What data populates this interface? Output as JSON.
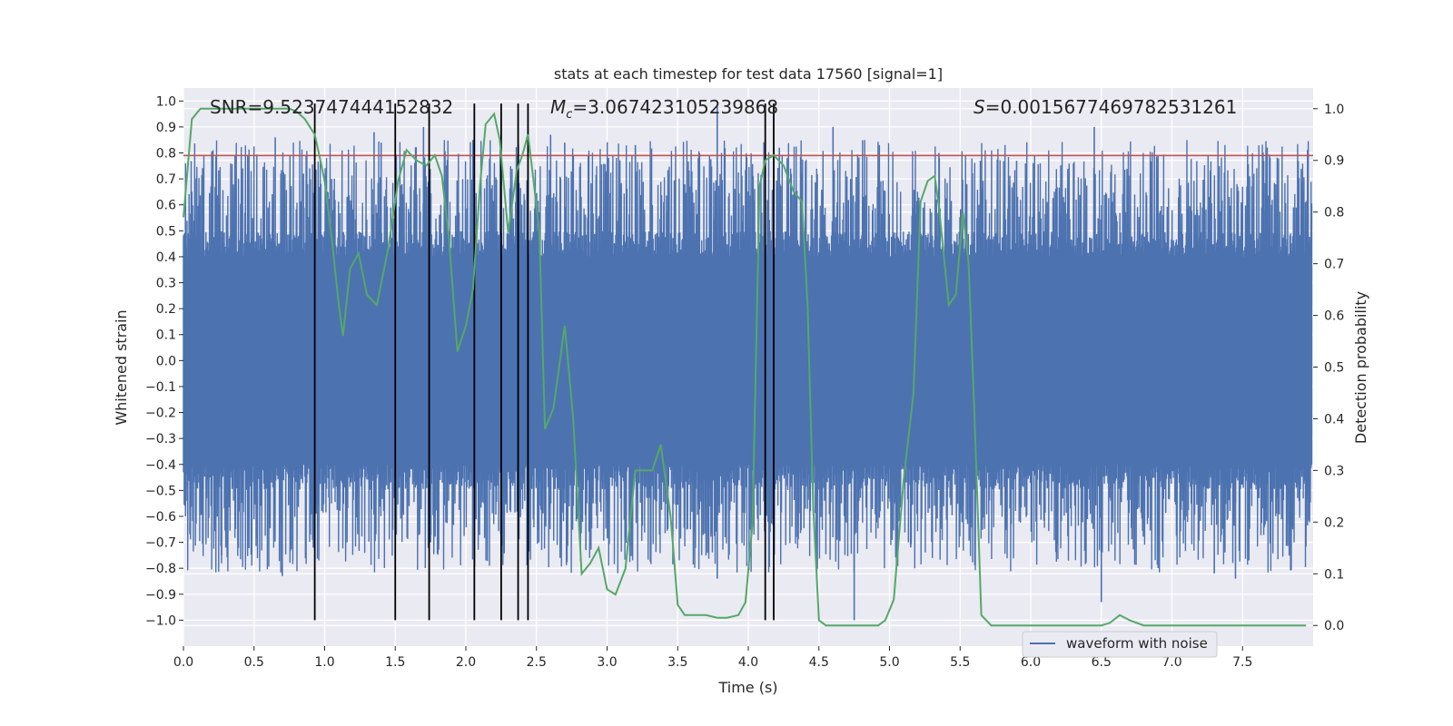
{
  "chart_data": {
    "type": "line",
    "title": "stats at each timestep for test data 17560 [signal=1]",
    "xlabel": "Time (s)",
    "ylabel": "Whitened strain",
    "y2label": "Detection probability",
    "xlim": [
      0.0,
      8.0
    ],
    "ylim": [
      -1.1,
      1.05
    ],
    "y2lim": [
      -0.04,
      1.04
    ],
    "grid": true,
    "x_ticks": [
      0.0,
      0.5,
      1.0,
      1.5,
      2.0,
      2.5,
      3.0,
      3.5,
      4.0,
      4.5,
      5.0,
      5.5,
      6.0,
      6.5,
      7.0,
      7.5
    ],
    "x_tick_labels": [
      "0.0",
      "0.5",
      "1.0",
      "1.5",
      "2.0",
      "2.5",
      "3.0",
      "3.5",
      "4.0",
      "4.5",
      "5.0",
      "5.5",
      "6.0",
      "6.5",
      "7.0",
      "7.5"
    ],
    "y_ticks": [
      1.0,
      0.9,
      0.8,
      0.7,
      0.6,
      0.5,
      0.4,
      0.3,
      0.2,
      0.1,
      0.0,
      -0.1,
      -0.2,
      -0.3,
      -0.4,
      -0.5,
      -0.6,
      -0.7,
      -0.8,
      -0.9,
      -1.0
    ],
    "y_tick_labels": [
      "1.0",
      "0.9",
      "0.8",
      "0.7",
      "0.6",
      "0.5",
      "0.4",
      "0.3",
      "0.2",
      "0.1",
      "0.0",
      "−0.1",
      "−0.2",
      "−0.3",
      "−0.4",
      "−0.5",
      "−0.6",
      "−0.7",
      "−0.8",
      "−0.9",
      "−1.0"
    ],
    "y2_ticks": [
      1.0,
      0.9,
      0.8,
      0.7,
      0.6,
      0.5,
      0.4,
      0.3,
      0.2,
      0.1,
      0.0
    ],
    "y2_tick_labels": [
      "1.0",
      "0.9",
      "0.8",
      "0.7",
      "0.6",
      "0.5",
      "0.4",
      "0.3",
      "0.2",
      "0.1",
      "0.0"
    ],
    "annotations": {
      "snr": "SNR=9.523747444152832",
      "mc_symbol": "M",
      "mc_sub": "c",
      "mc_value": "=3.067423105239868",
      "s_symbol": "S",
      "s_value": "=0.0015677469782531261"
    },
    "legend": {
      "location": "lower-right",
      "entries": [
        "waveform with noise"
      ]
    },
    "waveform": {
      "name": "waveform with noise",
      "color": "#4c72b0",
      "t_start": 0.0,
      "t_end": 7.99,
      "core_amplitude": 0.4,
      "spikes": [
        {
          "t": 0.65,
          "v": 0.86
        },
        {
          "t": 0.85,
          "v": 0.72
        },
        {
          "t": 1.05,
          "v": 0.7
        },
        {
          "t": 1.35,
          "v": 0.88
        },
        {
          "t": 1.4,
          "v": 0.84
        },
        {
          "t": 1.7,
          "v": 0.9
        },
        {
          "t": 2.05,
          "v": 0.85
        },
        {
          "t": 2.6,
          "v": 0.87
        },
        {
          "t": 2.7,
          "v": 0.84
        },
        {
          "t": 3.2,
          "v": 0.83
        },
        {
          "t": 3.78,
          "v": 0.98
        },
        {
          "t": 4.22,
          "v": 0.82
        },
        {
          "t": 4.6,
          "v": 0.9
        },
        {
          "t": 5.35,
          "v": 0.8
        },
        {
          "t": 5.9,
          "v": 0.77
        },
        {
          "t": 6.45,
          "v": 0.9
        },
        {
          "t": 6.9,
          "v": 0.78
        },
        {
          "t": 7.65,
          "v": 0.77
        },
        {
          "t": 0.27,
          "v": -0.75
        },
        {
          "t": 0.7,
          "v": -0.83
        },
        {
          "t": 1.75,
          "v": -0.7
        },
        {
          "t": 2.85,
          "v": -0.73
        },
        {
          "t": 3.78,
          "v": -0.84
        },
        {
          "t": 4.48,
          "v": -0.77
        },
        {
          "t": 4.75,
          "v": -1.0
        },
        {
          "t": 5.15,
          "v": -0.72
        },
        {
          "t": 6.5,
          "v": -0.93
        },
        {
          "t": 7.3,
          "v": -0.82
        },
        {
          "t": 7.45,
          "v": -0.84
        }
      ]
    },
    "probability": {
      "name": "detection probability",
      "color": "#55a868",
      "x": [
        0.0,
        0.06,
        0.12,
        0.25,
        0.4,
        0.55,
        0.7,
        0.75,
        0.8,
        0.86,
        0.93,
        0.97,
        1.0,
        1.05,
        1.1,
        1.13,
        1.18,
        1.24,
        1.3,
        1.37,
        1.45,
        1.52,
        1.58,
        1.65,
        1.72,
        1.78,
        1.83,
        1.88,
        1.94,
        2.0,
        2.05,
        2.1,
        2.14,
        2.2,
        2.24,
        2.3,
        2.36,
        2.4,
        2.44,
        2.48,
        2.52,
        2.56,
        2.62,
        2.7,
        2.76,
        2.82,
        2.88,
        2.94,
        3.0,
        3.06,
        3.13,
        3.2,
        3.27,
        3.32,
        3.38,
        3.45,
        3.5,
        3.55,
        3.62,
        3.7,
        3.78,
        3.85,
        3.93,
        3.98,
        4.03,
        4.08,
        4.12,
        4.18,
        4.25,
        4.32,
        4.38,
        4.42,
        4.46,
        4.5,
        4.55,
        4.62,
        4.72,
        4.82,
        4.92,
        4.97,
        5.03,
        5.1,
        5.17,
        5.22,
        5.27,
        5.32,
        5.35,
        5.42,
        5.47,
        5.52,
        5.56,
        5.6,
        5.65,
        5.72,
        5.82,
        5.95,
        6.1,
        6.3,
        6.5,
        6.56,
        6.63,
        6.7,
        6.8,
        6.95,
        7.2,
        7.5,
        7.95
      ],
      "y": [
        0.79,
        0.98,
        1.0,
        1.0,
        1.0,
        1.0,
        1.0,
        1.0,
        0.995,
        0.98,
        0.95,
        0.9,
        0.86,
        0.75,
        0.62,
        0.56,
        0.69,
        0.72,
        0.64,
        0.62,
        0.73,
        0.86,
        0.92,
        0.9,
        0.89,
        0.91,
        0.87,
        0.75,
        0.53,
        0.58,
        0.65,
        0.85,
        0.97,
        0.99,
        0.94,
        0.76,
        0.88,
        0.91,
        0.95,
        0.86,
        0.76,
        0.38,
        0.42,
        0.58,
        0.4,
        0.1,
        0.12,
        0.15,
        0.07,
        0.06,
        0.11,
        0.3,
        0.3,
        0.3,
        0.35,
        0.21,
        0.04,
        0.02,
        0.02,
        0.02,
        0.015,
        0.015,
        0.02,
        0.045,
        0.2,
        0.85,
        0.9,
        0.91,
        0.89,
        0.84,
        0.82,
        0.62,
        0.23,
        0.01,
        0.0,
        0.0,
        0.0,
        0.0,
        0.0,
        0.01,
        0.05,
        0.28,
        0.45,
        0.82,
        0.86,
        0.87,
        0.81,
        0.62,
        0.64,
        0.8,
        0.7,
        0.42,
        0.02,
        0.0,
        0.0,
        0.0,
        0.0,
        0.0,
        0.0,
        0.005,
        0.02,
        0.01,
        0.0,
        0.0,
        0.0,
        0.0,
        0.0
      ]
    },
    "threshold": {
      "y": 0.79,
      "color": "#c44e52"
    },
    "trigger_times": [
      0.93,
      1.5,
      1.74,
      2.06,
      2.25,
      2.37,
      2.44,
      4.12,
      4.18
    ],
    "trigger_color": "#000000"
  }
}
